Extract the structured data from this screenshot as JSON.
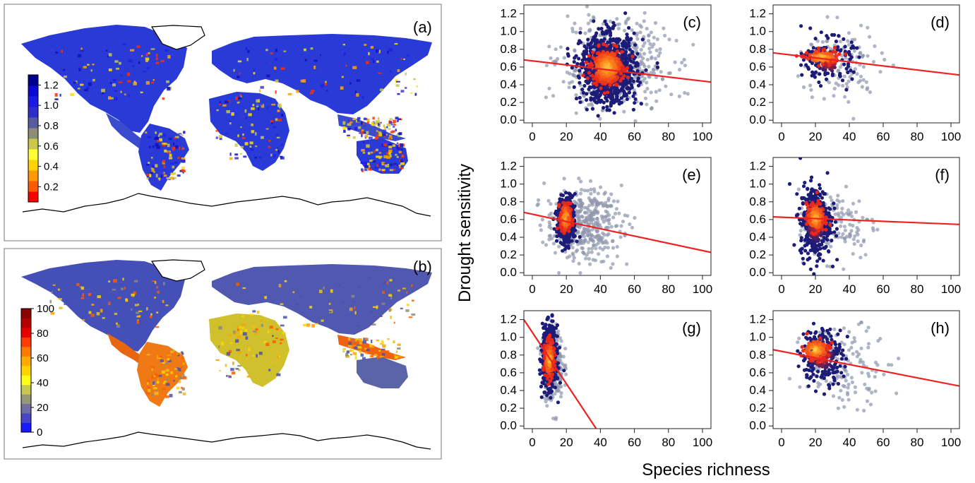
{
  "figure": {
    "ylabel": "Drought sensitivity",
    "xlabel": "Species richness"
  },
  "colors": {
    "regression_line": "#ee2222",
    "point_grey": "#8f95ad",
    "point_navy": "#1c1c78",
    "density_red": "#e8261a",
    "density_orange": "#ff8a1c",
    "density_yellow": "#ffd64a"
  },
  "maps": [
    {
      "panel": "(a)",
      "colorbar_ticks": [
        "1.2",
        "1.0",
        "0.8",
        "0.6",
        "0.4",
        "0.2"
      ],
      "colorbar_values": [
        1.2,
        1.0,
        0.8,
        0.6,
        0.4,
        0.2
      ],
      "colorbar_range": [
        0.05,
        1.3
      ],
      "colorbar_colors": [
        "#ff0000",
        "#ff5a00",
        "#ff9900",
        "#ffd400",
        "#ffff33",
        "#c8c84a",
        "#8c8c78",
        "#5a5aa0",
        "#2e2ec8",
        "#1a1ae6",
        "#0a0ad2",
        "#00008c"
      ]
    },
    {
      "panel": "(b)",
      "colorbar_ticks": [
        "100",
        "80",
        "60",
        "40",
        "20",
        "0"
      ],
      "colorbar_values": [
        100,
        80,
        60,
        40,
        20,
        0
      ],
      "colorbar_range": [
        0,
        100
      ],
      "colorbar_colors": [
        "#1a1aff",
        "#4646c8",
        "#6e6ea0",
        "#969678",
        "#c8c850",
        "#ffff14",
        "#ffd200",
        "#ffaa00",
        "#ff7800",
        "#ff3c00",
        "#e60000",
        "#b40000",
        "#8c0000"
      ]
    }
  ],
  "chart_data": [
    {
      "type": "scatter",
      "panel": "(c)",
      "xlim": [
        -5,
        105
      ],
      "ylim": [
        -0.03,
        1.3
      ],
      "xticks": [
        "0",
        "20",
        "40",
        "60",
        "80",
        "100"
      ],
      "yticks": [
        "0.0",
        "0.2",
        "0.4",
        "0.6",
        "0.8",
        "1.0",
        "1.2"
      ],
      "xtick_values": [
        0,
        20,
        40,
        60,
        80,
        100
      ],
      "ytick_values": [
        0,
        0.2,
        0.4,
        0.6,
        0.8,
        1.0,
        1.2
      ],
      "regression": {
        "x": [
          -5,
          105
        ],
        "y": [
          0.68,
          0.43
        ]
      },
      "clusters": [
        {
          "role": "spread",
          "cx": 48,
          "sx": 16,
          "cy": 0.6,
          "sy": 0.26,
          "n": 500
        },
        {
          "role": "core",
          "cx": 45,
          "sx": 8,
          "cy": 0.58,
          "sy": 0.19,
          "n": 950
        },
        {
          "role": "peak",
          "cx": 44,
          "sx": 4.5,
          "cy": 0.6,
          "sy": 0.1,
          "n": 320
        }
      ]
    },
    {
      "type": "scatter",
      "panel": "(d)",
      "xlim": [
        -5,
        105
      ],
      "ylim": [
        -0.03,
        1.3
      ],
      "xticks": [
        "0",
        "20",
        "40",
        "60",
        "80",
        "100"
      ],
      "yticks": [
        "0.0",
        "0.2",
        "0.4",
        "0.6",
        "0.8",
        "1.0",
        "1.2"
      ],
      "xtick_values": [
        0,
        20,
        40,
        60,
        80,
        100
      ],
      "ytick_values": [
        0,
        0.2,
        0.4,
        0.6,
        0.8,
        1.0,
        1.2
      ],
      "regression": {
        "x": [
          -5,
          105
        ],
        "y": [
          0.76,
          0.51
        ]
      },
      "clusters": [
        {
          "role": "spread",
          "cx": 35,
          "sx": 12,
          "cy": 0.62,
          "sy": 0.24,
          "n": 110
        },
        {
          "role": "core",
          "cx": 28,
          "sx": 7,
          "cy": 0.68,
          "sy": 0.12,
          "n": 150
        },
        {
          "role": "peak",
          "cx": 24,
          "sx": 5,
          "cy": 0.71,
          "sy": 0.04,
          "n": 100
        }
      ]
    },
    {
      "type": "scatter",
      "panel": "(e)",
      "xlim": [
        -5,
        105
      ],
      "ylim": [
        -0.03,
        1.3
      ],
      "xticks": [
        "0",
        "20",
        "40",
        "60",
        "80",
        "100"
      ],
      "yticks": [
        "0.0",
        "0.2",
        "0.4",
        "0.6",
        "0.8",
        "1.0",
        "1.2"
      ],
      "xtick_values": [
        0,
        20,
        40,
        60,
        80,
        100
      ],
      "ytick_values": [
        0,
        0.2,
        0.4,
        0.6,
        0.8,
        1.0,
        1.2
      ],
      "regression": {
        "x": [
          -5,
          105
        ],
        "y": [
          0.68,
          0.23
        ]
      },
      "clusters": [
        {
          "role": "spread",
          "cx": 30,
          "sx": 11,
          "cy": 0.55,
          "sy": 0.2,
          "n": 420
        },
        {
          "role": "core",
          "cx": 20,
          "sx": 2.6,
          "cy": 0.58,
          "sy": 0.13,
          "n": 420
        },
        {
          "role": "peak",
          "cx": 19.5,
          "sx": 1.5,
          "cy": 0.62,
          "sy": 0.08,
          "n": 180
        }
      ]
    },
    {
      "type": "scatter",
      "panel": "(f)",
      "xlim": [
        -5,
        105
      ],
      "ylim": [
        -0.03,
        1.3
      ],
      "xticks": [
        "0",
        "20",
        "40",
        "60",
        "80",
        "100"
      ],
      "yticks": [
        "0.0",
        "0.2",
        "0.4",
        "0.6",
        "0.8",
        "1.0",
        "1.2"
      ],
      "xtick_values": [
        0,
        20,
        40,
        60,
        80,
        100
      ],
      "ytick_values": [
        0,
        0.2,
        0.4,
        0.6,
        0.8,
        1.0,
        1.2
      ],
      "regression": {
        "x": [
          -5,
          105
        ],
        "y": [
          0.63,
          0.545
        ]
      },
      "clusters": [
        {
          "role": "spread",
          "cx": 33,
          "sx": 12,
          "cy": 0.55,
          "sy": 0.2,
          "n": 130
        },
        {
          "role": "core",
          "cx": 20,
          "sx": 4.5,
          "cy": 0.58,
          "sy": 0.2,
          "n": 420
        },
        {
          "role": "peak",
          "cx": 20,
          "sx": 2.6,
          "cy": 0.62,
          "sy": 0.08,
          "n": 180
        }
      ]
    },
    {
      "type": "scatter",
      "panel": "(g)",
      "xlim": [
        -5,
        105
      ],
      "ylim": [
        -0.03,
        1.3
      ],
      "xticks": [
        "0",
        "20",
        "40",
        "60",
        "80",
        "100"
      ],
      "yticks": [
        "0.0",
        "0.2",
        "0.4",
        "0.6",
        "0.8",
        "1.0",
        "1.2"
      ],
      "xtick_values": [
        0,
        20,
        40,
        60,
        80,
        100
      ],
      "ytick_values": [
        0,
        0.2,
        0.4,
        0.6,
        0.8,
        1.0,
        1.2
      ],
      "regression": {
        "x": [
          -5,
          37.5
        ],
        "y": [
          1.2,
          -0.03
        ]
      },
      "clusters": [
        {
          "role": "spread",
          "cx": 12,
          "sx": 3,
          "cy": 0.7,
          "sy": 0.2,
          "n": 320
        },
        {
          "role": "core",
          "cx": 10,
          "sx": 2,
          "cy": 0.78,
          "sy": 0.17,
          "n": 620
        },
        {
          "role": "peak",
          "cx": 10,
          "sx": 1.3,
          "cy": 0.75,
          "sy": 0.1,
          "n": 260
        }
      ]
    },
    {
      "type": "scatter",
      "panel": "(h)",
      "xlim": [
        -5,
        105
      ],
      "ylim": [
        -0.03,
        1.3
      ],
      "xticks": [
        "0",
        "20",
        "40",
        "60",
        "80",
        "100"
      ],
      "yticks": [
        "0.0",
        "0.2",
        "0.4",
        "0.6",
        "0.8",
        "1.0",
        "1.2"
      ],
      "xtick_values": [
        0,
        20,
        40,
        60,
        80,
        100
      ],
      "ytick_values": [
        0,
        0.2,
        0.4,
        0.6,
        0.8,
        1.0,
        1.2
      ],
      "regression": {
        "x": [
          -5,
          105
        ],
        "y": [
          0.86,
          0.45
        ]
      },
      "clusters": [
        {
          "role": "spread",
          "cx": 38,
          "sx": 13,
          "cy": 0.68,
          "sy": 0.22,
          "n": 140
        },
        {
          "role": "core",
          "cx": 24,
          "sx": 6,
          "cy": 0.8,
          "sy": 0.15,
          "n": 260
        },
        {
          "role": "peak",
          "cx": 20,
          "sx": 4,
          "cy": 0.86,
          "sy": 0.06,
          "n": 130
        }
      ]
    }
  ]
}
